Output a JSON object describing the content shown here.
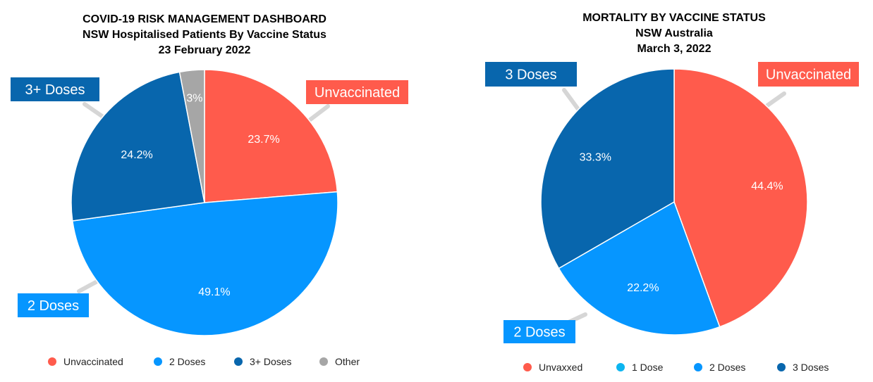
{
  "chart_data": [
    {
      "type": "pie",
      "title_lines": [
        "COVID-19 RISK MANAGEMENT DASHBOARD",
        "NSW Hospitalised Patients By Vaccine Status",
        "23 February 2022"
      ],
      "slices": [
        {
          "name": "Unvaccinated",
          "value": 23.7,
          "label": "23.7%",
          "color": "#FF5B4C"
        },
        {
          "name": "2 Doses",
          "value": 49.1,
          "label": "49.1%",
          "color": "#0696FF"
        },
        {
          "name": "3+ Doses",
          "value": 24.2,
          "label": "24.2%",
          "color": "#0866AD"
        },
        {
          "name": "Other",
          "value": 3,
          "label": "3%",
          "color": "#A6A6A6"
        }
      ],
      "callouts": [
        "Unvaccinated",
        "2 Doses",
        "3+ Doses"
      ],
      "legend": [
        {
          "label": "Unvaccinated",
          "color": "#FF5B4C"
        },
        {
          "label": "2 Doses",
          "color": "#0696FF"
        },
        {
          "label": "3+ Doses",
          "color": "#0866AD"
        },
        {
          "label": "Other",
          "color": "#A6A6A6"
        }
      ],
      "legend_position": "bottom"
    },
    {
      "type": "pie",
      "title_lines": [
        "MORTALITY BY VACCINE STATUS",
        "NSW Australia",
        "March 3, 2022"
      ],
      "slices": [
        {
          "name": "Unvaxxed",
          "value": 44.4,
          "label": "44.4%",
          "color": "#FF5B4C"
        },
        {
          "name": "2 Doses",
          "value": 22.2,
          "label": "22.2%",
          "color": "#0696FF"
        },
        {
          "name": "3 Doses",
          "value": 33.3,
          "label": "33.3%",
          "color": "#0866AD"
        }
      ],
      "callouts": [
        "Unvaccinated",
        "2 Doses",
        "3 Doses"
      ],
      "legend": [
        {
          "label": "Unvaxxed",
          "color": "#FF5B4C"
        },
        {
          "label": "1 Dose",
          "color": "#0CB5F0"
        },
        {
          "label": "2 Doses",
          "color": "#0696FF"
        },
        {
          "label": "3 Doses",
          "color": "#0866AD"
        }
      ],
      "legend_position": "bottom"
    }
  ]
}
